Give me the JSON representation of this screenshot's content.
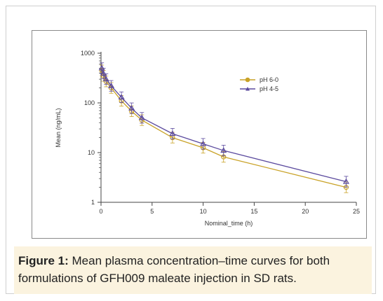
{
  "chart_data": {
    "type": "line",
    "xlabel": "Nominal_time (h)",
    "ylabel": "Mean (ng/mL)",
    "y_scale": "log",
    "xlim": [
      0,
      25
    ],
    "ylim": [
      1,
      1000
    ],
    "x_ticks": [
      0,
      5,
      10,
      15,
      20,
      25
    ],
    "y_ticks": [
      1,
      10,
      100,
      1000
    ],
    "x_tick_labels": [
      "0",
      "5",
      "10",
      "15",
      "20",
      "25"
    ],
    "y_tick_labels": [
      "1",
      "10",
      "100",
      "1000"
    ],
    "grid": false,
    "legend_position": "top-right",
    "x": [
      0.08,
      0.25,
      0.5,
      1,
      2,
      3,
      4,
      7,
      10,
      12,
      24
    ],
    "series": [
      {
        "name": "pH 6-0",
        "color": "#c9a227",
        "marker": "circle",
        "values": [
          450,
          350,
          270,
          200,
          110,
          68,
          45,
          20,
          12.5,
          8.2,
          2.0
        ]
      },
      {
        "name": "pH 4-5",
        "color": "#5b4a9e",
        "marker": "triangle",
        "values": [
          500,
          390,
          300,
          220,
          130,
          78,
          50,
          24,
          15,
          11,
          2.6
        ]
      }
    ],
    "error_bars_visible": true
  },
  "caption": {
    "lead": "Figure 1:",
    "text": " Mean plasma concentration–time curves for both formulations of GFH009 maleate injection in SD rats."
  }
}
